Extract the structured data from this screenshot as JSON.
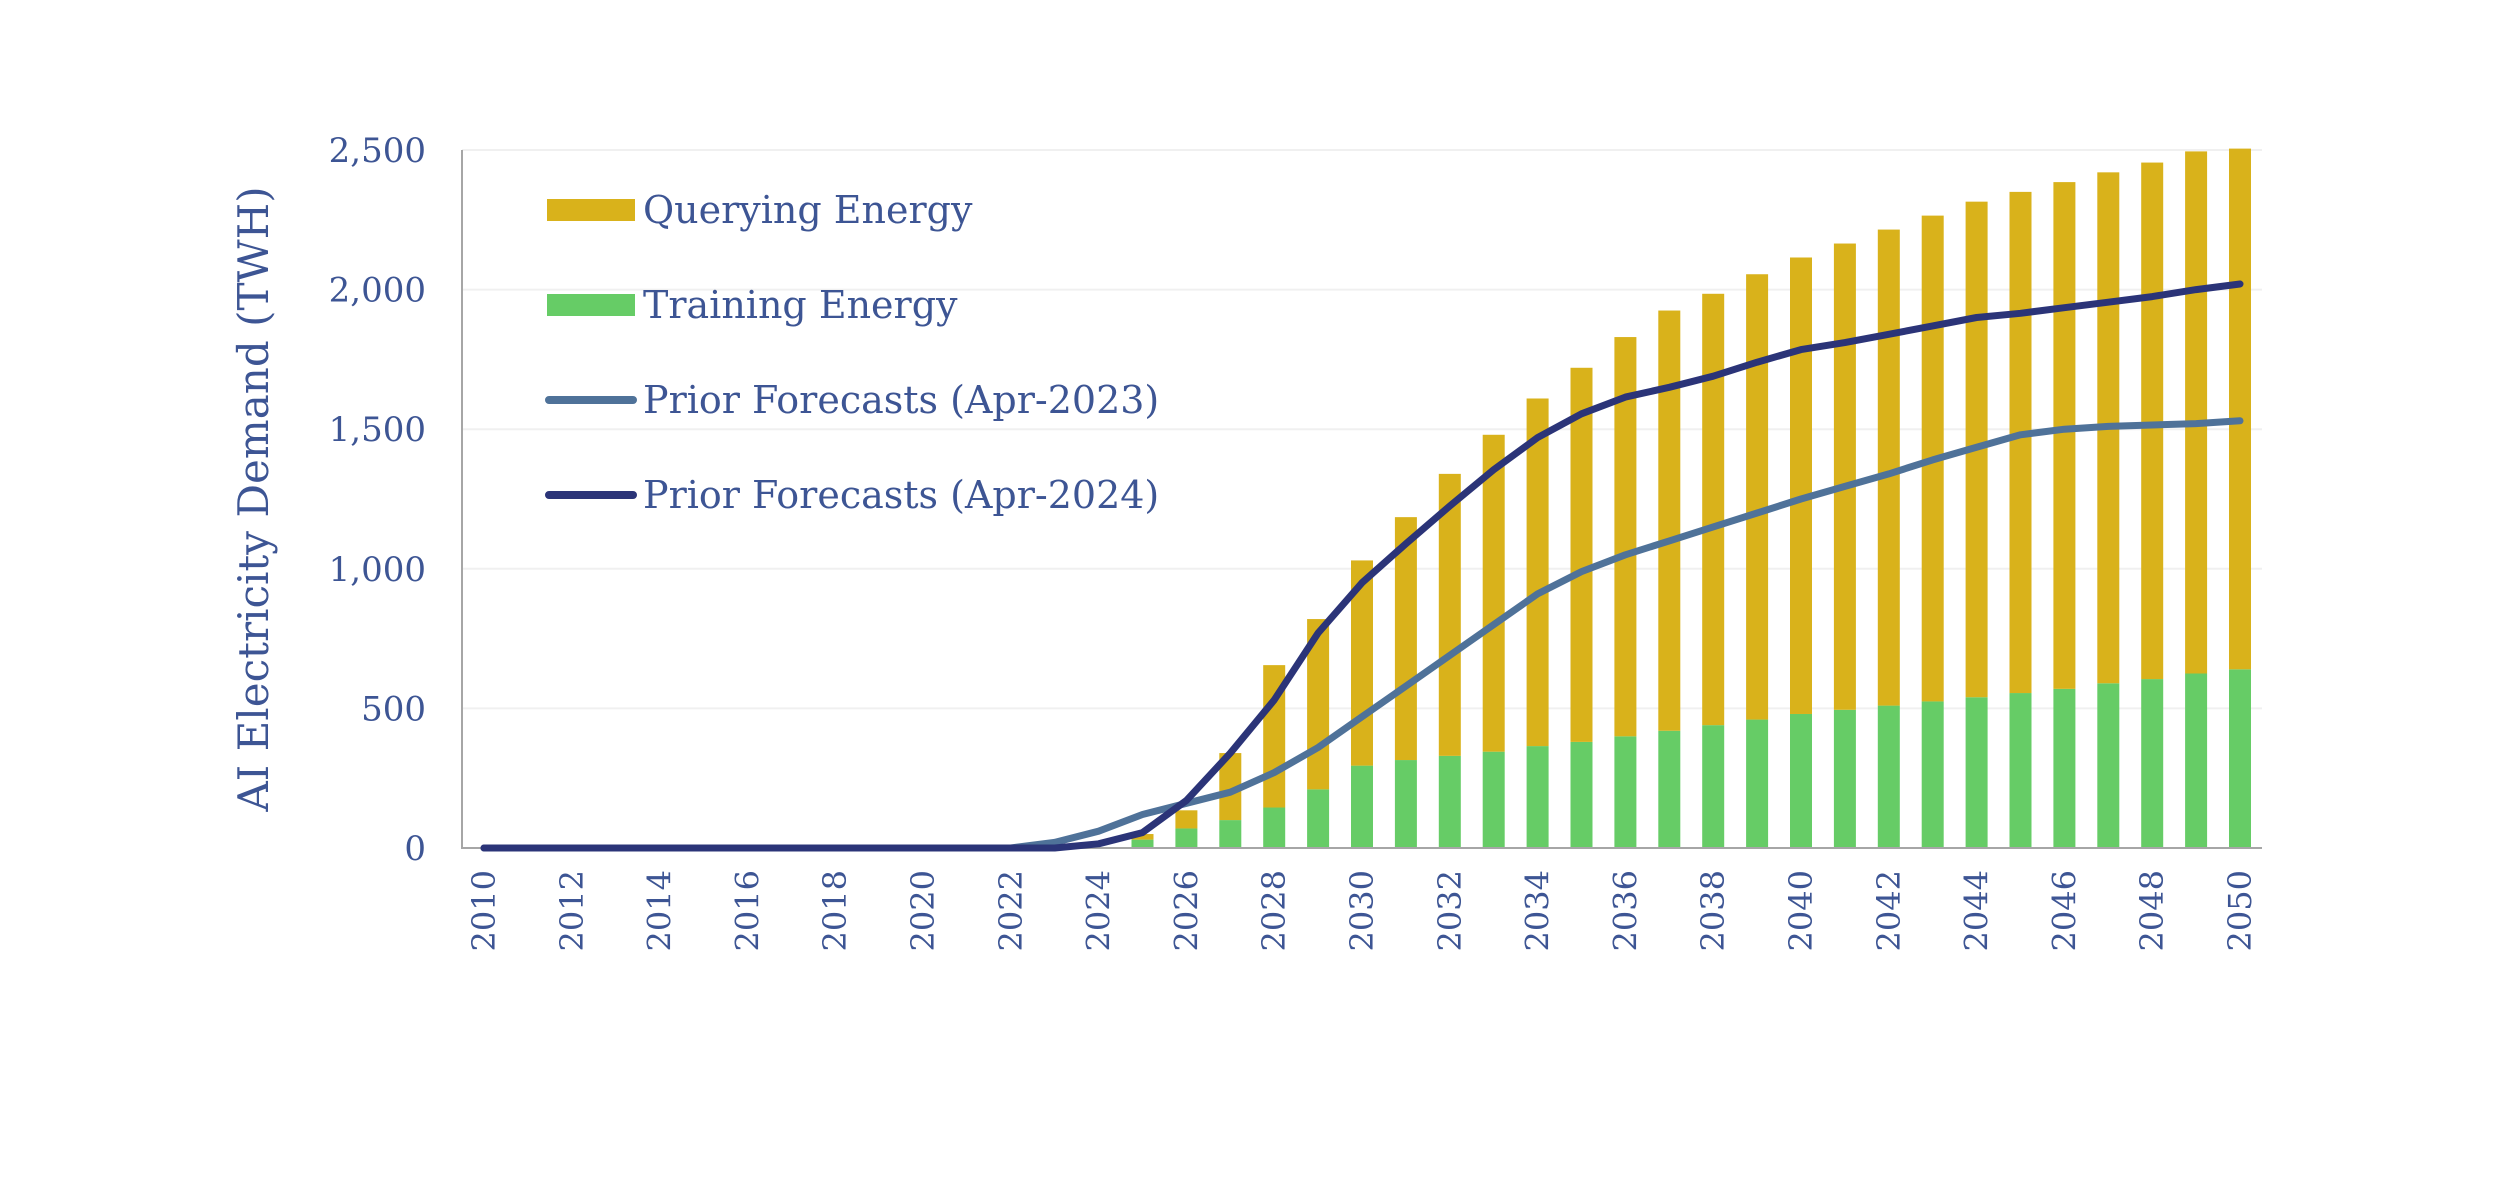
{
  "chart_data": {
    "type": "bar",
    "ylabel": "AI Electricity Demand (TWH)",
    "xlabel": "",
    "ylim": [
      0,
      2500
    ],
    "yticks": [
      0,
      500,
      1000,
      1500,
      2000,
      2500
    ],
    "ytick_labels": [
      "0",
      "500",
      "1,000",
      "1,500",
      "2,000",
      "2,500"
    ],
    "x": [
      2010,
      2011,
      2012,
      2013,
      2014,
      2015,
      2016,
      2017,
      2018,
      2019,
      2020,
      2021,
      2022,
      2023,
      2024,
      2025,
      2026,
      2027,
      2028,
      2029,
      2030,
      2031,
      2032,
      2033,
      2034,
      2035,
      2036,
      2037,
      2038,
      2039,
      2040,
      2041,
      2042,
      2043,
      2044,
      2045,
      2046,
      2047,
      2048,
      2049,
      2050
    ],
    "xtick_labels": [
      "2010",
      "2012",
      "2014",
      "2016",
      "2018",
      "2020",
      "2022",
      "2024",
      "2026",
      "2028",
      "2030",
      "2032",
      "2034",
      "2036",
      "2038",
      "2040",
      "2042",
      "2044",
      "2046",
      "2048",
      "2050"
    ],
    "stacked": true,
    "grid": true,
    "legend_position": "top-left",
    "series": [
      {
        "name": "Training Energy",
        "kind": "bar",
        "color": "#66cc66",
        "values": [
          0,
          0,
          0,
          0,
          0,
          0,
          0,
          0,
          0,
          0,
          0,
          0,
          0,
          0,
          0,
          30,
          70,
          100,
          145,
          210,
          295,
          315,
          330,
          345,
          365,
          380,
          400,
          420,
          440,
          460,
          480,
          495,
          510,
          525,
          540,
          555,
          570,
          590,
          605,
          625,
          640
        ]
      },
      {
        "name": "Querying Energy",
        "kind": "bar",
        "color": "#d9b21b",
        "values": [
          0,
          0,
          0,
          0,
          0,
          0,
          0,
          0,
          0,
          0,
          0,
          0,
          0,
          0,
          0,
          20,
          65,
          240,
          510,
          610,
          735,
          870,
          1010,
          1135,
          1245,
          1340,
          1430,
          1505,
          1545,
          1595,
          1635,
          1670,
          1705,
          1740,
          1775,
          1795,
          1815,
          1830,
          1850,
          1870,
          1865
        ]
      },
      {
        "name": "Prior Forecasts (Apr-2023)",
        "kind": "line",
        "color": "#4f7299",
        "values": [
          0,
          0,
          0,
          0,
          0,
          0,
          0,
          0,
          0,
          0,
          0,
          0,
          0,
          20,
          60,
          120,
          160,
          200,
          270,
          360,
          470,
          580,
          690,
          800,
          910,
          990,
          1050,
          1100,
          1150,
          1200,
          1250,
          1295,
          1340,
          1390,
          1435,
          1480,
          1500,
          1510,
          1515,
          1520,
          1530
        ]
      },
      {
        "name": "Prior Forecasts (Apr-2024)",
        "kind": "line",
        "color": "#2b3478",
        "values": [
          0,
          0,
          0,
          0,
          0,
          0,
          0,
          0,
          0,
          0,
          0,
          0,
          0,
          0,
          15,
          55,
          170,
          340,
          530,
          770,
          950,
          1090,
          1225,
          1355,
          1470,
          1555,
          1615,
          1650,
          1690,
          1740,
          1785,
          1810,
          1840,
          1870,
          1900,
          1915,
          1935,
          1955,
          1975,
          2000,
          2020
        ]
      }
    ],
    "legend_order": [
      "Querying Energy",
      "Training Energy",
      "Prior Forecasts (Apr-2023)",
      "Prior Forecasts (Apr-2024)"
    ]
  }
}
